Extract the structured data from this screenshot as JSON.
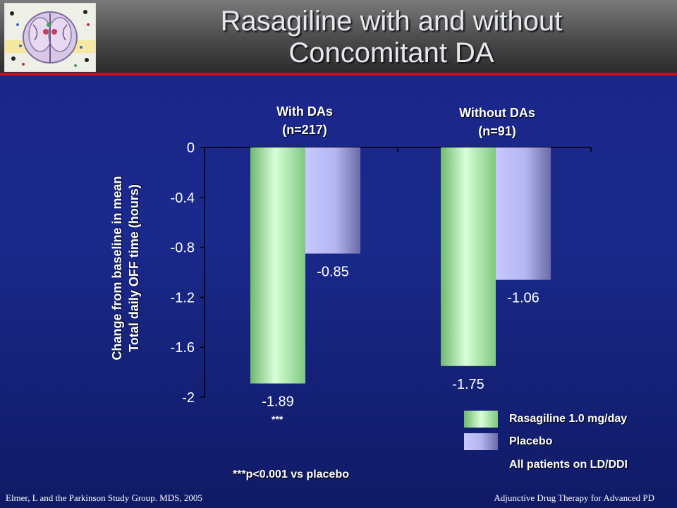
{
  "slide": {
    "title_line1": "Rasagiline with and without",
    "title_line2": "Concomitant DA",
    "footer_left": "Elmer,  L and the Parkinson Study Group. MDS, 2005",
    "footer_right": "Adjunctive Drug Therapy for Advanced PD",
    "significance_marker": "***",
    "pvalue_note": "***p<0.001 vs placebo",
    "patients_note": "All patients on LD/DDI"
  },
  "groups": [
    {
      "line1": "With DAs",
      "line2": "(n=217)"
    },
    {
      "line1": "Without DAs",
      "line2": "(n=91)"
    }
  ],
  "chart_data": {
    "type": "bar",
    "categories": [
      "With DAs (n=217)",
      "Without DAs (n=91)"
    ],
    "series": [
      {
        "name": "Rasagiline 1.0 mg/day",
        "values": [
          -1.89,
          -1.75
        ],
        "color": "#a8f0a8"
      },
      {
        "name": "Placebo",
        "values": [
          -0.85,
          -1.06
        ],
        "color": "#b4b4f4"
      }
    ],
    "data_labels": [
      [
        "-1.89",
        "-1.75"
      ],
      [
        "-0.85",
        "-1.06"
      ]
    ],
    "ylabel_line1": "Change from baseline in mean",
    "ylabel_line2": "Total daily OFF time (hours)",
    "xlabel": "",
    "ylim": [
      -2,
      0
    ],
    "yticks": [
      0,
      -0.4,
      -0.8,
      -1.2,
      -1.6,
      -2
    ],
    "ytick_labels": [
      "0",
      "-0.4",
      "-0.8",
      "-1.2",
      "-1.6",
      "-2"
    ],
    "grid": false,
    "legend_position": "bottom-right"
  }
}
